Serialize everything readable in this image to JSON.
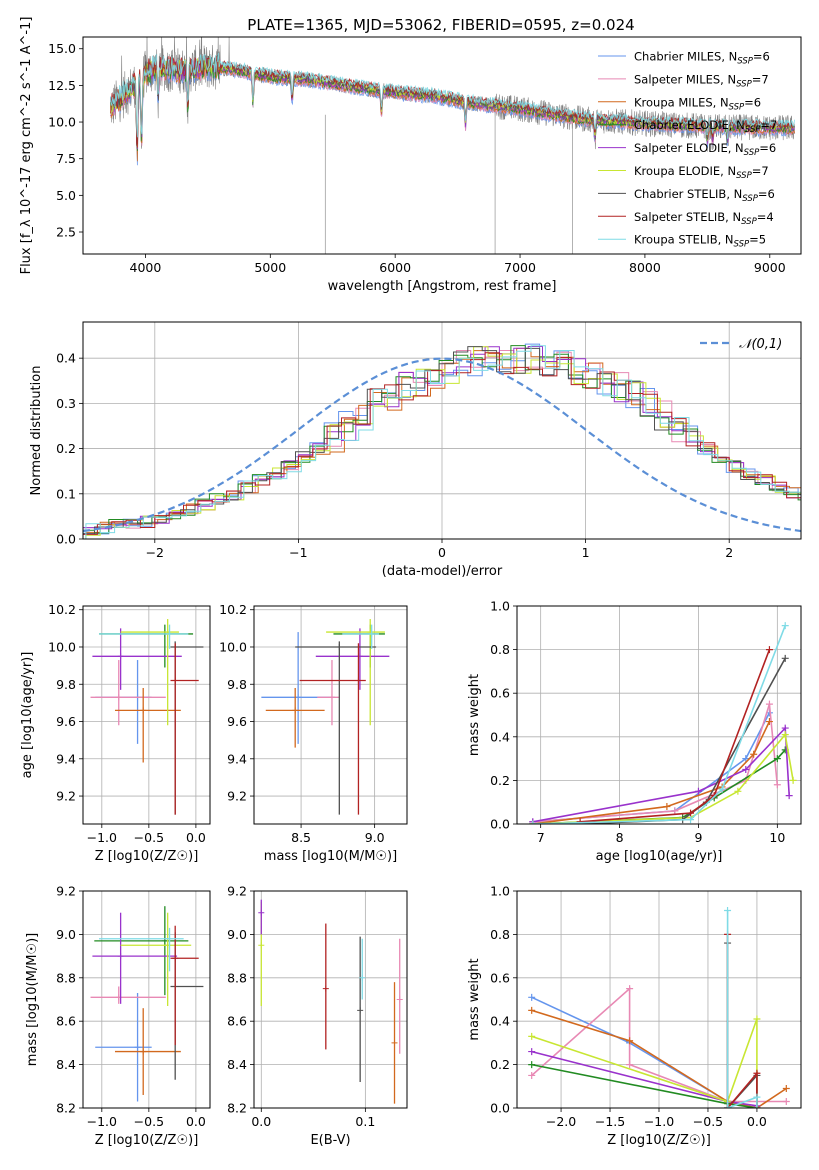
{
  "title": "PLATE=1365, MJD=53062, FIBERID=0595, z=0.024",
  "models": [
    {
      "name": "Chabrier MILES",
      "nssp": "6",
      "color": "#6495ed"
    },
    {
      "name": "Salpeter MILES",
      "nssp": "7",
      "color": "#e889b4"
    },
    {
      "name": "Kroupa MILES",
      "nssp": "6",
      "color": "#d2691e"
    },
    {
      "name": "Chabrier ELODIE",
      "nssp": "7",
      "color": "#228b22"
    },
    {
      "name": "Salpeter ELODIE",
      "nssp": "6",
      "color": "#9932cc"
    },
    {
      "name": "Kroupa ELODIE",
      "nssp": "7",
      "color": "#c8e632"
    },
    {
      "name": "Chabrier STELIB",
      "nssp": "6",
      "color": "#505050"
    },
    {
      "name": "Salpeter STELIB",
      "nssp": "4",
      "color": "#b22222"
    },
    {
      "name": "Kroupa STELIB",
      "nssp": "5",
      "color": "#7fdbe6"
    }
  ],
  "nssp_label": "N",
  "nssp_sub": "SSP",
  "chart_data": [
    {
      "id": "spectrum",
      "type": "line",
      "xlabel": "wavelength [Angstrom, rest frame]",
      "ylabel": "Flux [f_λ 10^-17 erg cm^-2 s^-1 A^-1]",
      "xlim": [
        3500,
        9250
      ],
      "ylim": [
        1.0,
        15.8
      ],
      "xticks": [
        4000,
        5000,
        6000,
        7000,
        8000,
        9000
      ],
      "yticks": [
        2.5,
        5.0,
        7.5,
        10.0,
        12.5,
        15.0
      ],
      "observed_data": {
        "color": "#808080"
      },
      "continuum_model": {
        "wavelength": [
          3750,
          3850,
          4000,
          4100,
          4300,
          4500,
          4700,
          5000,
          5300,
          5600,
          6000,
          6300,
          6600,
          7000,
          7500,
          8000,
          8500,
          9000,
          9200
        ],
        "flux": [
          11.2,
          12.0,
          13.3,
          13.7,
          13.5,
          13.8,
          13.6,
          13.1,
          12.9,
          12.5,
          12.0,
          11.8,
          11.3,
          10.9,
          10.2,
          9.9,
          9.7,
          9.6,
          9.6
        ]
      },
      "legend_position": "upper right"
    },
    {
      "id": "residuals",
      "type": "histogram",
      "xlabel": "(data-model)/error",
      "ylabel": "Normed distribution",
      "xlim": [
        -2.5,
        2.5
      ],
      "ylim": [
        0,
        0.48
      ],
      "xticks": [
        -2,
        -1,
        0,
        1,
        2
      ],
      "yticks": [
        0.0,
        0.1,
        0.2,
        0.3,
        0.4
      ],
      "reference": {
        "label": "𝒩(0,1)",
        "color": "#5b8fd6",
        "style": "dashed"
      },
      "bin_width": 0.1,
      "profile": [
        0.02,
        0.025,
        0.03,
        0.034,
        0.038,
        0.045,
        0.055,
        0.065,
        0.075,
        0.088,
        0.1,
        0.115,
        0.13,
        0.145,
        0.16,
        0.18,
        0.2,
        0.225,
        0.25,
        0.275,
        0.3,
        0.32,
        0.335,
        0.35,
        0.365,
        0.375,
        0.385,
        0.395,
        0.4,
        0.4,
        0.4,
        0.4,
        0.395,
        0.385,
        0.375,
        0.365,
        0.35,
        0.335,
        0.32,
        0.3,
        0.275,
        0.25,
        0.225,
        0.2,
        0.18,
        0.16,
        0.145,
        0.13,
        0.115,
        0.1,
        0.088,
        0.075,
        0.065,
        0.055,
        0.045,
        0.038,
        0.034,
        0.03,
        0.025,
        0.02
      ],
      "grid": true
    },
    {
      "id": "age-vs-Z",
      "type": "errorbar",
      "xlabel": "Z [log10(Z/Z☉)]",
      "ylabel": "age [log10(age/yr)]",
      "xlim": [
        -1.2,
        0.15
      ],
      "ylim": [
        9.05,
        10.22
      ],
      "xticks": [
        -1.0,
        -0.5,
        0.0
      ],
      "yticks": [
        9.2,
        9.4,
        9.6,
        9.8,
        10.0,
        10.2
      ],
      "points": [
        {
          "model": 0,
          "x": -0.62,
          "xerr": [
            0.45,
            0.15
          ],
          "y": 9.73,
          "yerr": [
            0.25,
            0.2
          ]
        },
        {
          "model": 1,
          "x": -0.82,
          "xerr": [
            0.3,
            0.5
          ],
          "y": 9.73,
          "yerr": [
            0.15,
            0.2
          ]
        },
        {
          "model": 2,
          "x": -0.56,
          "xerr": [
            0.3,
            0.4
          ],
          "y": 9.66,
          "yerr": [
            0.28,
            0.12
          ]
        },
        {
          "model": 3,
          "x": -0.33,
          "xerr": [
            0.7,
            0.3
          ],
          "y": 10.07,
          "yerr": [
            0.18,
            0.05
          ]
        },
        {
          "model": 4,
          "x": -0.8,
          "xerr": [
            0.3,
            0.65
          ],
          "y": 9.95,
          "yerr": [
            0.18,
            0.15
          ]
        },
        {
          "model": 5,
          "x": -0.3,
          "xerr": [
            0.5,
            0.12
          ],
          "y": 10.08,
          "yerr": [
            0.5,
            0.07
          ]
        },
        {
          "model": 6,
          "x": -0.22,
          "xerr": [
            0.05,
            0.3
          ],
          "y": 10.0,
          "yerr": [
            0.9,
            0.03
          ]
        },
        {
          "model": 7,
          "x": -0.22,
          "xerr": [
            0.05,
            0.25
          ],
          "y": 9.82,
          "yerr": [
            0.72,
            0.2
          ]
        },
        {
          "model": 8,
          "x": -0.28,
          "xerr": [
            0.75,
            0.2
          ],
          "y": 10.07,
          "yerr": [
            0.08,
            0.05
          ]
        }
      ]
    },
    {
      "id": "age-vs-mass",
      "type": "errorbar",
      "xlabel": "mass [log10(M/M☉)]",
      "ylabel": "",
      "xlim": [
        8.18,
        9.22
      ],
      "ylim": [
        9.05,
        10.22
      ],
      "xticks": [
        8.5,
        9.0
      ],
      "yticks": [
        9.2,
        9.4,
        9.6,
        9.8,
        10.0,
        10.2
      ],
      "points": [
        {
          "model": 0,
          "x": 8.48,
          "xerr": [
            0.25,
            0.25
          ],
          "y": 9.73,
          "yerr": [
            0.25,
            0.35
          ]
        },
        {
          "model": 1,
          "x": 8.71,
          "xerr": [
            0.1,
            0.05
          ],
          "y": 9.73,
          "yerr": [
            0.15,
            0.2
          ]
        },
        {
          "model": 2,
          "x": 8.46,
          "xerr": [
            0.2,
            0.2
          ],
          "y": 9.66,
          "yerr": [
            0.2,
            0.12
          ]
        },
        {
          "model": 3,
          "x": 8.97,
          "xerr": [
            0.25,
            0.1
          ],
          "y": 10.07,
          "yerr": [
            0.18,
            0.05
          ]
        },
        {
          "model": 4,
          "x": 8.9,
          "xerr": [
            0.3,
            0.2
          ],
          "y": 9.95,
          "yerr": [
            0.18,
            0.15
          ]
        },
        {
          "model": 5,
          "x": 8.97,
          "xerr": [
            0.3,
            0.1
          ],
          "y": 10.08,
          "yerr": [
            0.5,
            0.07
          ]
        },
        {
          "model": 6,
          "x": 8.76,
          "xerr": [
            0.3,
            0.25
          ],
          "y": 10.0,
          "yerr": [
            0.9,
            0.03
          ]
        },
        {
          "model": 7,
          "x": 8.89,
          "xerr": [
            0.4,
            0.05
          ],
          "y": 9.82,
          "yerr": [
            0.72,
            0.2
          ]
        },
        {
          "model": 8,
          "x": 8.98,
          "xerr": [
            0.2,
            0.05
          ],
          "y": 10.07,
          "yerr": [
            0.08,
            0.05
          ]
        }
      ]
    },
    {
      "id": "weight-vs-age",
      "type": "line",
      "xlabel": "age [log10(age/yr)]",
      "ylabel": "mass weight",
      "xlim": [
        6.7,
        10.3
      ],
      "ylim": [
        0,
        1.0
      ],
      "xticks": [
        7,
        8,
        9,
        10
      ],
      "yticks": [
        0.0,
        0.2,
        0.4,
        0.6,
        0.8,
        1.0
      ],
      "series": [
        {
          "model": 0,
          "x": [
            6.9,
            8.7,
            9.6,
            9.9
          ],
          "y": [
            0.01,
            0.06,
            0.3,
            0.51
          ]
        },
        {
          "model": 1,
          "x": [
            6.9,
            8.7,
            9.6,
            9.9,
            10.0
          ],
          "y": [
            0.01,
            0.06,
            0.2,
            0.55,
            0.18
          ]
        },
        {
          "model": 2,
          "x": [
            6.9,
            8.6,
            9.3,
            9.7,
            9.9
          ],
          "y": [
            0.0,
            0.08,
            0.17,
            0.32,
            0.47
          ]
        },
        {
          "model": 3,
          "x": [
            6.9,
            8.8,
            9.2,
            10.0,
            10.1
          ],
          "y": [
            0.0,
            0.03,
            0.12,
            0.3,
            0.34
          ]
        },
        {
          "model": 4,
          "x": [
            6.9,
            9.0,
            9.6,
            10.1,
            10.15
          ],
          "y": [
            0.01,
            0.15,
            0.25,
            0.44,
            0.13
          ]
        },
        {
          "model": 5,
          "x": [
            6.9,
            8.9,
            9.5,
            10.1,
            10.2
          ],
          "y": [
            0.0,
            0.03,
            0.15,
            0.41,
            0.2
          ]
        },
        {
          "model": 6,
          "x": [
            7.5,
            8.8,
            9.1,
            10.1
          ],
          "y": [
            0.0,
            0.02,
            0.1,
            0.76
          ]
        },
        {
          "model": 7,
          "x": [
            7.5,
            8.9,
            9.2,
            9.9
          ],
          "y": [
            0.01,
            0.05,
            0.13,
            0.8
          ]
        },
        {
          "model": 8,
          "x": [
            6.9,
            8.9,
            9.3,
            10.1
          ],
          "y": [
            0.0,
            0.02,
            0.16,
            0.91
          ]
        }
      ]
    },
    {
      "id": "mass-vs-Z",
      "type": "errorbar",
      "xlabel": "Z [log10(Z/Z☉)]",
      "ylabel": "mass [log10(M/M☉)]",
      "xlim": [
        -1.2,
        0.15
      ],
      "ylim": [
        8.2,
        9.2
      ],
      "xticks": [
        -1.0,
        -0.5,
        0.0
      ],
      "yticks": [
        8.2,
        8.4,
        8.6,
        8.8,
        9.0,
        9.2
      ],
      "points": [
        {
          "model": 0,
          "x": -0.62,
          "xerr": [
            0.45,
            0.15
          ],
          "y": 8.48,
          "yerr": [
            0.25,
            0.25
          ]
        },
        {
          "model": 1,
          "x": -0.82,
          "xerr": [
            0.3,
            0.5
          ],
          "y": 8.71,
          "yerr": [
            0.03,
            0.05
          ]
        },
        {
          "model": 2,
          "x": -0.56,
          "xerr": [
            0.3,
            0.4
          ],
          "y": 8.46,
          "yerr": [
            0.2,
            0.2
          ]
        },
        {
          "model": 3,
          "x": -0.33,
          "xerr": [
            0.75,
            0.25
          ],
          "y": 8.97,
          "yerr": [
            0.25,
            0.16
          ]
        },
        {
          "model": 4,
          "x": -0.8,
          "xerr": [
            0.3,
            0.6
          ],
          "y": 8.9,
          "yerr": [
            0.22,
            0.2
          ]
        },
        {
          "model": 5,
          "x": -0.3,
          "xerr": [
            0.5,
            0.25
          ],
          "y": 8.95,
          "yerr": [
            0.28,
            0.15
          ]
        },
        {
          "model": 6,
          "x": -0.22,
          "xerr": [
            0.05,
            0.3
          ],
          "y": 8.76,
          "yerr": [
            0.43,
            0.25
          ]
        },
        {
          "model": 7,
          "x": -0.22,
          "xerr": [
            0.05,
            0.25
          ],
          "y": 8.89,
          "yerr": [
            0.4,
            0.15
          ]
        },
        {
          "model": 8,
          "x": -0.28,
          "xerr": [
            0.75,
            0.15
          ],
          "y": 8.98,
          "yerr": [
            0.15,
            0.05
          ]
        }
      ]
    },
    {
      "id": "mass-vs-EBV",
      "type": "errorbar",
      "xlabel": "E(B-V)",
      "ylabel": "",
      "xlim": [
        -0.007,
        0.14
      ],
      "ylim": [
        8.2,
        9.2
      ],
      "xticks": [
        0.0,
        0.1
      ],
      "yticks": [
        8.2,
        8.4,
        8.6,
        8.8,
        9.0,
        9.2
      ],
      "points": [
        {
          "model": 1,
          "x": 0.133,
          "y": 8.7,
          "yerr": [
            0.25,
            0.28
          ]
        },
        {
          "model": 2,
          "x": 0.128,
          "y": 8.5,
          "yerr": [
            0.28,
            0.28
          ]
        },
        {
          "model": 5,
          "x": 0.0,
          "y": 8.95,
          "yerr": [
            0.28,
            0.2
          ]
        },
        {
          "model": 4,
          "x": 0.0,
          "y": 9.1,
          "yerr": [
            0.1,
            0.06
          ]
        },
        {
          "model": 6,
          "x": 0.095,
          "y": 8.65,
          "yerr": [
            0.33,
            0.34
          ]
        },
        {
          "model": 7,
          "x": 0.062,
          "y": 8.75,
          "yerr": [
            0.28,
            0.3
          ]
        },
        {
          "model": 8,
          "x": 0.097,
          "y": 8.8,
          "yerr": [
            0.1,
            0.18
          ]
        }
      ]
    },
    {
      "id": "weight-vs-Z",
      "type": "line",
      "xlabel": "Z [log10(Z/Z☉)]",
      "ylabel": "mass weight",
      "xlim": [
        -2.45,
        0.45
      ],
      "ylim": [
        0,
        1.0
      ],
      "xticks": [
        -2.0,
        -1.5,
        -1.0,
        -0.5,
        0.0
      ],
      "yticks": [
        0.0,
        0.2,
        0.4,
        0.6,
        0.8,
        1.0
      ],
      "series": [
        {
          "model": 0,
          "x": [
            -2.3,
            -1.3,
            -0.3,
            0.0
          ],
          "y": [
            0.51,
            0.3,
            0.03,
            0.0
          ]
        },
        {
          "model": 1,
          "x": [
            -2.3,
            -1.3,
            -1.3,
            -0.3,
            0.3
          ],
          "y": [
            0.15,
            0.55,
            0.2,
            0.03,
            0.03
          ]
        },
        {
          "model": 2,
          "x": [
            -2.3,
            -1.3,
            -0.3,
            0.0,
            0.3
          ],
          "y": [
            0.45,
            0.31,
            0.03,
            0.0,
            0.09
          ]
        },
        {
          "model": 3,
          "x": [
            -2.3,
            -0.3,
            0.0
          ],
          "y": [
            0.2,
            0.02,
            0.0
          ]
        },
        {
          "model": 4,
          "x": [
            -2.3,
            -0.3,
            0.0
          ],
          "y": [
            0.26,
            0.03,
            0.01
          ]
        },
        {
          "model": 5,
          "x": [
            -2.3,
            -0.3,
            0.0,
            0.0
          ],
          "y": [
            0.33,
            0.03,
            0.41,
            0.0
          ]
        },
        {
          "model": 6,
          "x": [
            -0.3,
            -0.3,
            0.0,
            0.0
          ],
          "y": [
            0.76,
            0.0,
            0.15,
            0.0
          ]
        },
        {
          "model": 7,
          "x": [
            -0.3,
            -0.3,
            0.0,
            0.0
          ],
          "y": [
            0.8,
            0.0,
            0.16,
            0.0
          ]
        },
        {
          "model": 8,
          "x": [
            -0.3,
            -0.3,
            0.0,
            0.0
          ],
          "y": [
            0.91,
            0.0,
            0.05,
            0.0
          ]
        }
      ]
    }
  ]
}
